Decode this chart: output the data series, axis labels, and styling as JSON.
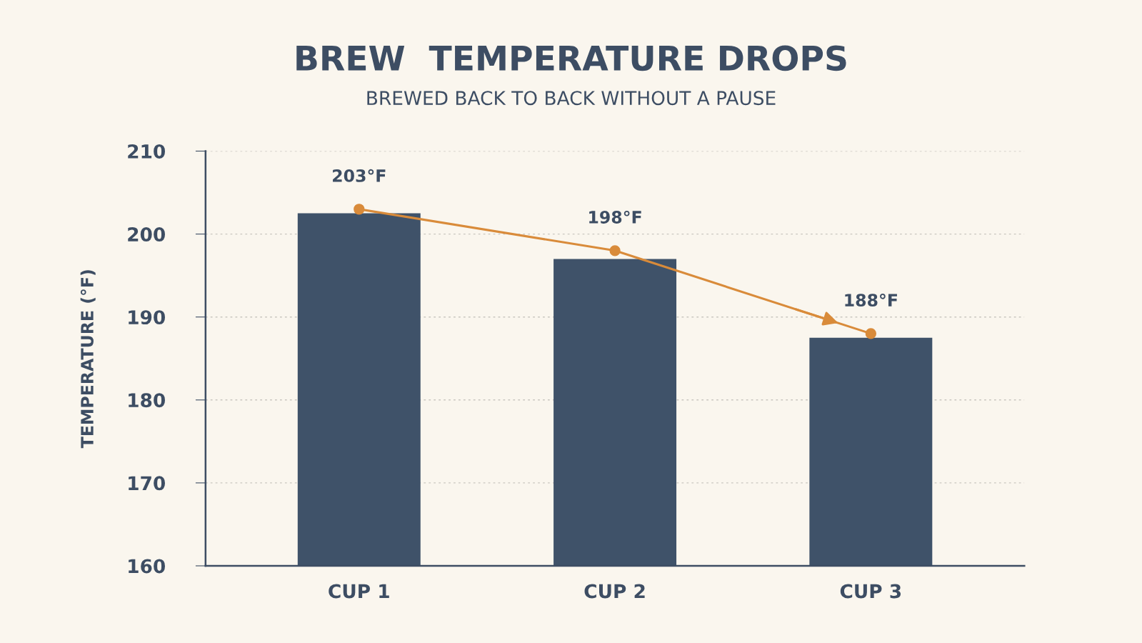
{
  "chart_data": {
    "type": "bar",
    "title": "BREW  TEMPERATURE DROPS",
    "subtitle": "BREWED BACK TO BACK WITHOUT A PAUSE",
    "ylabel": "TEMPERATURE (°F)",
    "categories": [
      "CUP 1",
      "CUP 2",
      "CUP 3"
    ],
    "series": [
      {
        "color": "#3f5269",
        "values": [
          202.5,
          197,
          187.5
        ]
      },
      {
        "type": "line",
        "color": "#d98b3a",
        "values": [
          203,
          198,
          188
        ],
        "marker": "circle",
        "value_labels": [
          "203°F",
          "198°F",
          "188°F"
        ]
      }
    ],
    "ylim": [
      160,
      210
    ],
    "yticks": [
      160,
      170,
      180,
      190,
      200,
      210
    ],
    "grid": "y",
    "legend": false
  }
}
